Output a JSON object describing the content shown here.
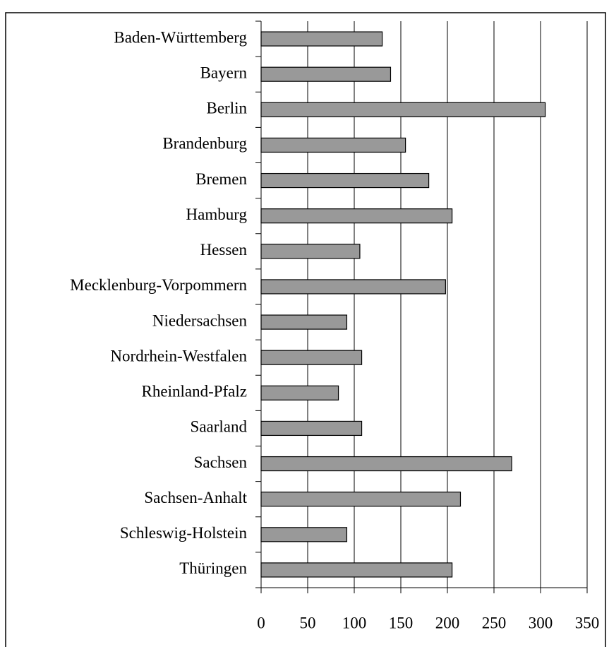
{
  "chart_data": {
    "type": "bar",
    "orientation": "horizontal",
    "categories": [
      "Baden-Württemberg",
      "Bayern",
      "Berlin",
      "Brandenburg",
      "Bremen",
      "Hamburg",
      "Hessen",
      "Mecklenburg-Vorpommern",
      "Niedersachsen",
      "Nordrhein-Westfalen",
      "Rheinland-Pfalz",
      "Saarland",
      "Sachsen",
      "Sachsen-Anhalt",
      "Schleswig-Holstein",
      "Thüringen"
    ],
    "values": [
      130,
      139,
      305,
      155,
      180,
      205,
      106,
      198,
      92,
      108,
      83,
      108,
      269,
      214,
      92,
      205
    ],
    "color": "#999999",
    "xlim": [
      0,
      350
    ],
    "xticks": [
      0,
      50,
      100,
      150,
      200,
      250,
      300,
      350
    ],
    "grid": true
  }
}
